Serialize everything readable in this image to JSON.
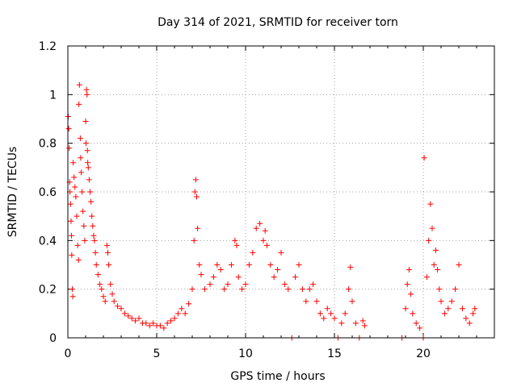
{
  "chart_data": {
    "type": "scatter",
    "title": "Day 314 of 2021, SRMTID for receiver torn",
    "xlabel": "GPS time / hours",
    "ylabel": "SRMTID / TECUs",
    "xlim": [
      0,
      24
    ],
    "ylim": [
      0,
      1.2
    ],
    "x_ticks": [
      0,
      5,
      10,
      15,
      20
    ],
    "x_tick_labels": [
      "0",
      "5",
      "10",
      "15",
      "20"
    ],
    "y_ticks": [
      0,
      0.2,
      0.4,
      0.6,
      0.8,
      1.0,
      1.2
    ],
    "y_tick_labels": [
      "0",
      "0.2",
      "0.4",
      "0.6",
      "0.8",
      "1",
      "1.2"
    ],
    "grid": true,
    "marker": "plus",
    "color": "#ff0000",
    "series": [
      {
        "name": "SRMTID",
        "points": [
          [
            0.02,
            0.91
          ],
          [
            0.05,
            0.86
          ],
          [
            0.08,
            0.78
          ],
          [
            0.1,
            0.64
          ],
          [
            0.12,
            0.6
          ],
          [
            0.15,
            0.55
          ],
          [
            0.18,
            0.48
          ],
          [
            0.2,
            0.42
          ],
          [
            0.22,
            0.34
          ],
          [
            0.25,
            0.2
          ],
          [
            0.28,
            0.17
          ],
          [
            0.3,
            0.72
          ],
          [
            0.35,
            0.66
          ],
          [
            0.4,
            0.62
          ],
          [
            0.45,
            0.58
          ],
          [
            0.5,
            0.5
          ],
          [
            0.55,
            0.38
          ],
          [
            0.6,
            0.32
          ],
          [
            0.62,
            0.96
          ],
          [
            0.65,
            1.04
          ],
          [
            0.7,
            0.82
          ],
          [
            0.72,
            0.74
          ],
          [
            0.75,
            0.68
          ],
          [
            0.8,
            0.6
          ],
          [
            0.85,
            0.52
          ],
          [
            0.9,
            0.46
          ],
          [
            0.95,
            0.4
          ],
          [
            1.0,
            0.89
          ],
          [
            1.02,
            0.8
          ],
          [
            1.05,
            1.02
          ],
          [
            1.08,
            1.0
          ],
          [
            1.1,
            0.77
          ],
          [
            1.12,
            0.72
          ],
          [
            1.15,
            0.7
          ],
          [
            1.2,
            0.65
          ],
          [
            1.25,
            0.6
          ],
          [
            1.3,
            0.56
          ],
          [
            1.35,
            0.5
          ],
          [
            1.4,
            0.46
          ],
          [
            1.45,
            0.42
          ],
          [
            1.5,
            0.4
          ],
          [
            1.55,
            0.35
          ],
          [
            1.6,
            0.3
          ],
          [
            1.7,
            0.26
          ],
          [
            1.8,
            0.22
          ],
          [
            1.9,
            0.2
          ],
          [
            2.0,
            0.17
          ],
          [
            2.1,
            0.15
          ],
          [
            2.2,
            0.38
          ],
          [
            2.25,
            0.35
          ],
          [
            2.3,
            0.3
          ],
          [
            2.4,
            0.22
          ],
          [
            2.5,
            0.18
          ],
          [
            2.6,
            0.15
          ],
          [
            2.8,
            0.13
          ],
          [
            3.0,
            0.12
          ],
          [
            3.2,
            0.1
          ],
          [
            3.4,
            0.09
          ],
          [
            3.6,
            0.08
          ],
          [
            3.8,
            0.07
          ],
          [
            4.0,
            0.08
          ],
          [
            4.2,
            0.06
          ],
          [
            4.4,
            0.06
          ],
          [
            4.6,
            0.05
          ],
          [
            4.8,
            0.06
          ],
          [
            5.0,
            0.05
          ],
          [
            5.2,
            0.05
          ],
          [
            5.4,
            0.04
          ],
          [
            5.6,
            0.06
          ],
          [
            5.8,
            0.07
          ],
          [
            6.0,
            0.08
          ],
          [
            6.2,
            0.1
          ],
          [
            6.4,
            0.12
          ],
          [
            6.6,
            0.1
          ],
          [
            6.8,
            0.14
          ],
          [
            7.0,
            0.2
          ],
          [
            7.1,
            0.4
          ],
          [
            7.15,
            0.6
          ],
          [
            7.2,
            0.65
          ],
          [
            7.25,
            0.58
          ],
          [
            7.3,
            0.45
          ],
          [
            7.4,
            0.3
          ],
          [
            7.5,
            0.26
          ],
          [
            7.7,
            0.2
          ],
          [
            8.0,
            0.22
          ],
          [
            8.2,
            0.25
          ],
          [
            8.4,
            0.3
          ],
          [
            8.6,
            0.28
          ],
          [
            8.8,
            0.2
          ],
          [
            9.0,
            0.22
          ],
          [
            9.2,
            0.3
          ],
          [
            9.4,
            0.4
          ],
          [
            9.5,
            0.38
          ],
          [
            9.6,
            0.25
          ],
          [
            9.8,
            0.2
          ],
          [
            10.0,
            0.22
          ],
          [
            10.2,
            0.3
          ],
          [
            10.4,
            0.35
          ],
          [
            10.6,
            0.45
          ],
          [
            10.8,
            0.47
          ],
          [
            11.0,
            0.4
          ],
          [
            11.1,
            0.44
          ],
          [
            11.2,
            0.38
          ],
          [
            11.4,
            0.3
          ],
          [
            11.6,
            0.25
          ],
          [
            11.8,
            0.28
          ],
          [
            12.0,
            0.35
          ],
          [
            12.2,
            0.22
          ],
          [
            12.4,
            0.2
          ],
          [
            12.6,
            0.0
          ],
          [
            12.8,
            0.25
          ],
          [
            13.0,
            0.3
          ],
          [
            13.2,
            0.2
          ],
          [
            13.4,
            0.15
          ],
          [
            13.6,
            0.2
          ],
          [
            13.8,
            0.22
          ],
          [
            14.0,
            0.15
          ],
          [
            14.2,
            0.1
          ],
          [
            14.4,
            0.08
          ],
          [
            14.6,
            0.12
          ],
          [
            14.8,
            0.1
          ],
          [
            15.0,
            0.08
          ],
          [
            15.2,
            0.0
          ],
          [
            15.4,
            0.06
          ],
          [
            15.6,
            0.1
          ],
          [
            15.8,
            0.2
          ],
          [
            15.9,
            0.29
          ],
          [
            16.0,
            0.15
          ],
          [
            16.2,
            0.06
          ],
          [
            16.4,
            0.0
          ],
          [
            16.6,
            0.07
          ],
          [
            16.7,
            0.05
          ],
          [
            18.8,
            0.0
          ],
          [
            19.0,
            0.12
          ],
          [
            19.1,
            0.22
          ],
          [
            19.2,
            0.28
          ],
          [
            19.3,
            0.18
          ],
          [
            19.4,
            0.1
          ],
          [
            19.6,
            0.06
          ],
          [
            19.8,
            0.04
          ],
          [
            20.0,
            0.0
          ],
          [
            20.05,
            0.74
          ],
          [
            20.2,
            0.25
          ],
          [
            20.3,
            0.4
          ],
          [
            20.4,
            0.55
          ],
          [
            20.5,
            0.45
          ],
          [
            20.6,
            0.3
          ],
          [
            20.7,
            0.36
          ],
          [
            20.8,
            0.28
          ],
          [
            20.9,
            0.2
          ],
          [
            21.0,
            0.15
          ],
          [
            21.2,
            0.1
          ],
          [
            21.4,
            0.12
          ],
          [
            21.6,
            0.15
          ],
          [
            21.8,
            0.2
          ],
          [
            22.0,
            0.3
          ],
          [
            22.2,
            0.12
          ],
          [
            22.4,
            0.08
          ],
          [
            22.6,
            0.06
          ],
          [
            22.8,
            0.1
          ],
          [
            22.9,
            0.12
          ]
        ]
      }
    ]
  }
}
